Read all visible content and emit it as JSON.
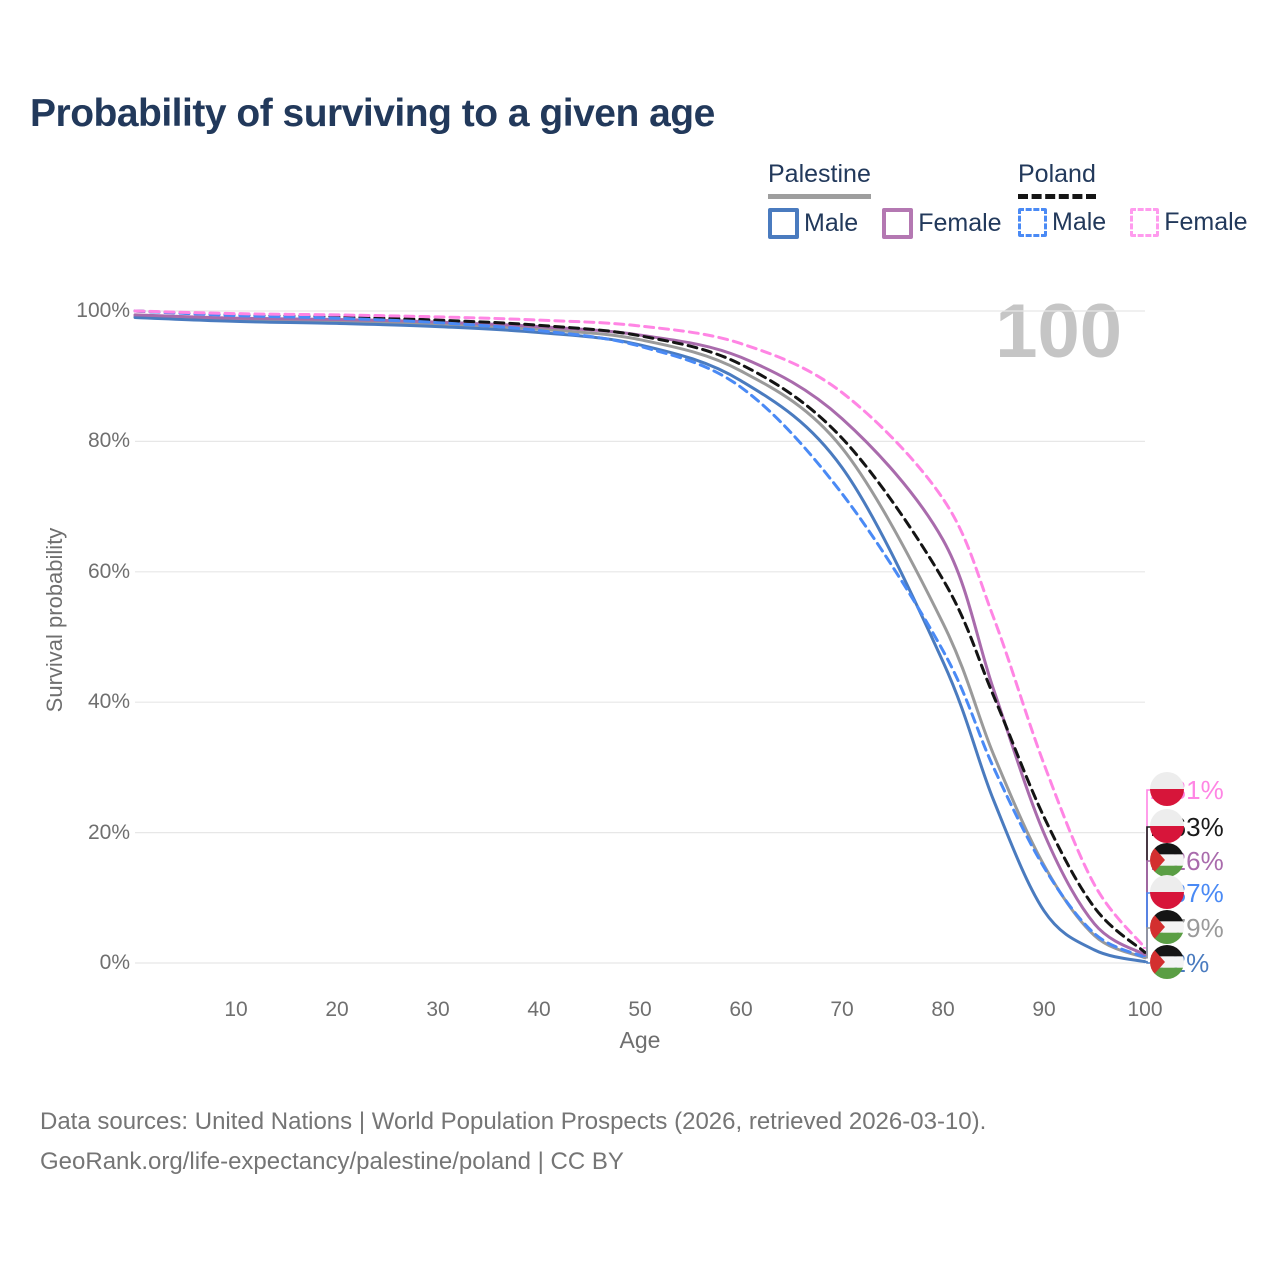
{
  "title": "Probability of surviving to a given age",
  "watermark": "100",
  "colors": {
    "palestine_male": "#4a7bbf",
    "palestine_female": "#a96bac",
    "palestine_both": "#9a9a9a",
    "poland_male": "#4a8af5",
    "poland_female": "#ff85e4",
    "poland_both": "#141414",
    "title_navy": "#22395b",
    "grid": "#e7e7e7",
    "tick_text": "#6f6f6f",
    "watermark_gray": "#c5c5c5"
  },
  "legend": {
    "groups": [
      {
        "id": "palestine",
        "title": "Palestine",
        "line_style": "solid",
        "items": [
          {
            "label": "Male",
            "series": "palestine_male"
          },
          {
            "label": "Female",
            "series": "palestine_female"
          }
        ]
      },
      {
        "id": "poland",
        "title": "Poland",
        "line_style": "dashed",
        "items": [
          {
            "label": "Male",
            "series": "poland_male"
          },
          {
            "label": "Female",
            "series": "poland_female"
          }
        ]
      }
    ]
  },
  "chart_data": {
    "type": "line",
    "title": "Probability of surviving to a given age",
    "xlabel": "Age",
    "ylabel": "Survival probability",
    "xlim": [
      0,
      100
    ],
    "ylim": [
      0,
      100
    ],
    "grid": "horizontal",
    "x_ticks": [
      10,
      20,
      30,
      40,
      50,
      60,
      70,
      80,
      90,
      100
    ],
    "y_ticks": [
      {
        "value": 0,
        "label": "0%"
      },
      {
        "value": 20,
        "label": "20%"
      },
      {
        "value": 40,
        "label": "40%"
      },
      {
        "value": 60,
        "label": "60%"
      },
      {
        "value": 80,
        "label": "80%"
      },
      {
        "value": 100,
        "label": "100%"
      }
    ],
    "x": [
      0,
      10,
      20,
      30,
      40,
      50,
      60,
      70,
      80,
      85,
      90,
      95,
      100
    ],
    "series": [
      {
        "id": "palestine_both",
        "name": "Palestine Both sexes",
        "line": "solid",
        "color": "#9a9a9a",
        "values": [
          99.2,
          98.7,
          98.4,
          98.0,
          97.2,
          95.6,
          90.8,
          79.0,
          52.1,
          32.0,
          15.0,
          4.2,
          0.79
        ]
      },
      {
        "id": "palestine_male",
        "name": "Palestine Male",
        "line": "solid",
        "color": "#4a7bbf",
        "values": [
          99.0,
          98.4,
          98.1,
          97.6,
          96.7,
          94.8,
          89.3,
          76.0,
          46.2,
          25.0,
          8.0,
          2.0,
          0.2
        ]
      },
      {
        "id": "palestine_female",
        "name": "Palestine Female",
        "line": "solid",
        "color": "#a96bac",
        "values": [
          99.4,
          98.9,
          98.7,
          98.3,
          97.6,
          96.3,
          92.9,
          83.5,
          64.9,
          42.0,
          19.9,
          6.0,
          1.26
        ]
      },
      {
        "id": "poland_both",
        "name": "Poland Both sexes",
        "line": "dashed",
        "color": "#141414",
        "values": [
          100,
          99.4,
          99.1,
          98.6,
          97.8,
          96.2,
          91.8,
          80.5,
          58.8,
          41.0,
          22.4,
          8.5,
          1.63
        ]
      },
      {
        "id": "poland_male",
        "name": "Poland Male",
        "line": "dashed",
        "color": "#4a8af5",
        "values": [
          100,
          99.3,
          98.9,
          98.2,
          97.0,
          94.6,
          88.3,
          72.0,
          47.9,
          30.0,
          14.7,
          4.5,
          0.87
        ]
      },
      {
        "id": "poland_female",
        "name": "Poland Female",
        "line": "dashed",
        "color": "#ff85e4",
        "values": [
          100,
          99.6,
          99.4,
          99.1,
          98.6,
          97.7,
          95.0,
          87.5,
          71.2,
          53.0,
          30.5,
          12.0,
          2.31
        ]
      }
    ],
    "end_labels": [
      {
        "text": "2.31%",
        "series": "poland_female",
        "flag": "poland",
        "color": "#ff85e4",
        "end_value": 2.31
      },
      {
        "text": "1.63%",
        "series": "poland_both",
        "flag": "poland",
        "color": "#1a1a1a",
        "end_value": 1.63
      },
      {
        "text": "1.26%",
        "series": "palestine_female",
        "flag": "palestine",
        "color": "#a96bac",
        "end_value": 1.26
      },
      {
        "text": "0.87%",
        "series": "poland_male",
        "flag": "poland",
        "color": "#4a8af5",
        "end_value": 0.87
      },
      {
        "text": "0.79%",
        "series": "palestine_both",
        "flag": "palestine",
        "color": "#9a9a9a",
        "end_value": 0.79
      },
      {
        "text": "0.2%",
        "series": "palestine_male",
        "flag": "palestine",
        "color": "#4a7bbf",
        "end_value": 0.2
      }
    ]
  },
  "footer": {
    "line1": "Data sources: United Nations | World Population Prospects (2026, retrieved 2026-03-10).",
    "line2": "GeoRank.org/life-expectancy/palestine/poland | CC BY"
  }
}
